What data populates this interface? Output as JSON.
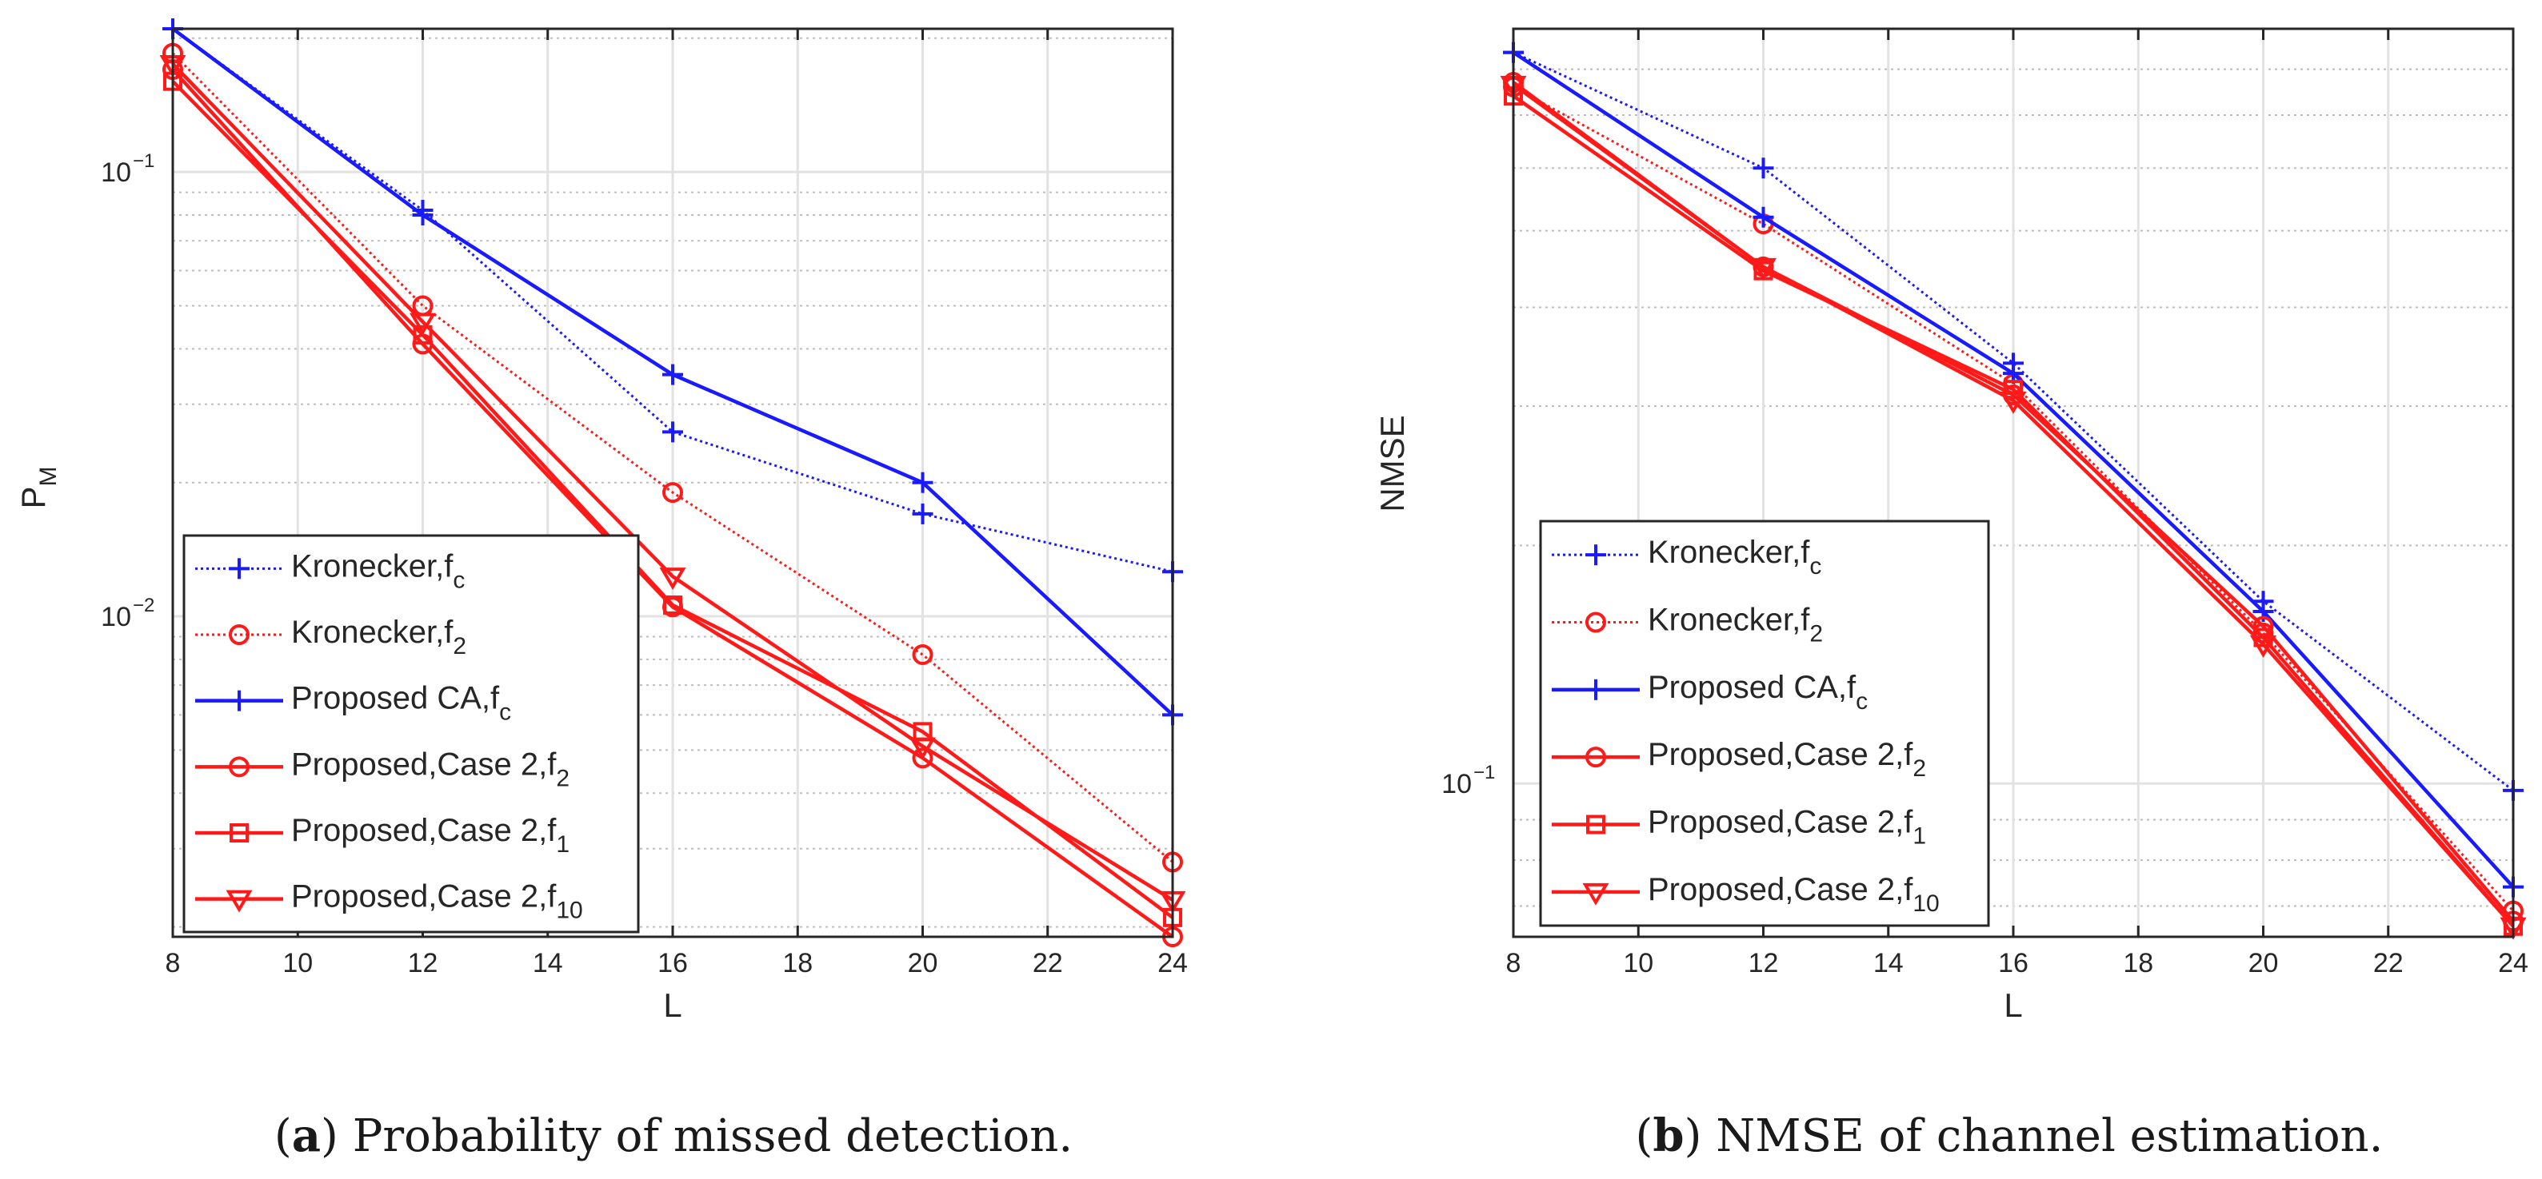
{
  "figure": {
    "caption_a": {
      "letter": "a",
      "text": " Probability of missed detection."
    },
    "caption_b": {
      "letter": "b",
      "text": " NMSE of channel estimation."
    }
  },
  "colors": {
    "blue": "#1a1aff",
    "red": "#ff1a1a"
  },
  "chart_data": [
    {
      "type": "line",
      "panel": "a",
      "xlabel": "L",
      "ylabel": "P",
      "ylabel_sub": "M",
      "yscale": "log",
      "xlim": [
        8,
        24
      ],
      "ylim": [
        0.0019,
        0.21
      ],
      "xticks": [
        8,
        10,
        12,
        14,
        16,
        18,
        20,
        22,
        24
      ],
      "yticks": [
        {
          "value": 0.1,
          "base": "10",
          "exp": "−1"
        },
        {
          "value": 0.01,
          "base": "10",
          "exp": "−2"
        }
      ],
      "grid": true,
      "legend_position": "lower-left",
      "x": [
        8,
        12,
        16,
        20,
        24
      ],
      "series": [
        {
          "name": "Kronecker,f",
          "sub": "c",
          "color": "#1a1aff",
          "style": "dotted",
          "marker": "plus",
          "values": [
            0.21,
            0.082,
            0.026,
            0.017,
            0.0126
          ]
        },
        {
          "name": "Kronecker,f",
          "sub": "2",
          "color": "#ff1a1a",
          "style": "dotted",
          "marker": "circle",
          "values": [
            0.185,
            0.05,
            0.019,
            0.0082,
            0.0028
          ]
        },
        {
          "name": "Proposed CA,f",
          "sub": "c",
          "color": "#1a1aff",
          "style": "solid",
          "marker": "plus",
          "values": [
            0.21,
            0.08,
            0.035,
            0.02,
            0.006
          ]
        },
        {
          "name": "Proposed,Case 2,f",
          "sub": "2",
          "color": "#ff1a1a",
          "style": "solid",
          "marker": "circle",
          "values": [
            0.17,
            0.041,
            0.0105,
            0.0048,
            0.0019
          ]
        },
        {
          "name": "Proposed,Case 2,f",
          "sub": "1",
          "color": "#ff1a1a",
          "style": "solid",
          "marker": "square",
          "values": [
            0.16,
            0.043,
            0.0106,
            0.0055,
            0.0021
          ]
        },
        {
          "name": "Proposed,Case 2,f",
          "sub": "10",
          "color": "#ff1a1a",
          "style": "solid",
          "marker": "triangle-down",
          "values": [
            0.175,
            0.046,
            0.0123,
            0.0051,
            0.0023
          ]
        }
      ]
    },
    {
      "type": "line",
      "panel": "b",
      "xlabel": "L",
      "ylabel": "NMSE",
      "ylabel_sub": "",
      "yscale": "log",
      "xlim": [
        8,
        24
      ],
      "ylim": [
        0.064,
        0.9
      ],
      "xticks": [
        8,
        10,
        12,
        14,
        16,
        18,
        20,
        22,
        24
      ],
      "yticks": [
        {
          "value": 0.1,
          "base": "10",
          "exp": "−1"
        }
      ],
      "grid": true,
      "legend_position": "lower-left",
      "x": [
        8,
        12,
        16,
        20,
        24
      ],
      "series": [
        {
          "name": "Kronecker,f",
          "sub": "c",
          "color": "#1a1aff",
          "style": "dotted",
          "marker": "plus",
          "values": [
            0.84,
            0.6,
            0.34,
            0.17,
            0.098
          ]
        },
        {
          "name": "Kronecker,f",
          "sub": "2",
          "color": "#ff1a1a",
          "style": "dotted",
          "marker": "circle",
          "values": [
            0.76,
            0.51,
            0.32,
            0.155,
            0.069
          ]
        },
        {
          "name": "Proposed CA,f",
          "sub": "c",
          "color": "#1a1aff",
          "style": "solid",
          "marker": "plus",
          "values": [
            0.84,
            0.52,
            0.33,
            0.165,
            0.074
          ]
        },
        {
          "name": "Proposed,Case 2,f",
          "sub": "2",
          "color": "#ff1a1a",
          "style": "solid",
          "marker": "circle",
          "values": [
            0.77,
            0.45,
            0.31,
            0.158,
            0.067
          ]
        },
        {
          "name": "Proposed,Case 2,f",
          "sub": "1",
          "color": "#ff1a1a",
          "style": "solid",
          "marker": "square",
          "values": [
            0.74,
            0.445,
            0.315,
            0.153,
            0.066
          ]
        },
        {
          "name": "Proposed,Case 2,f",
          "sub": "10",
          "color": "#ff1a1a",
          "style": "solid",
          "marker": "triangle-down",
          "values": [
            0.765,
            0.45,
            0.305,
            0.15,
            0.066
          ]
        }
      ]
    }
  ]
}
